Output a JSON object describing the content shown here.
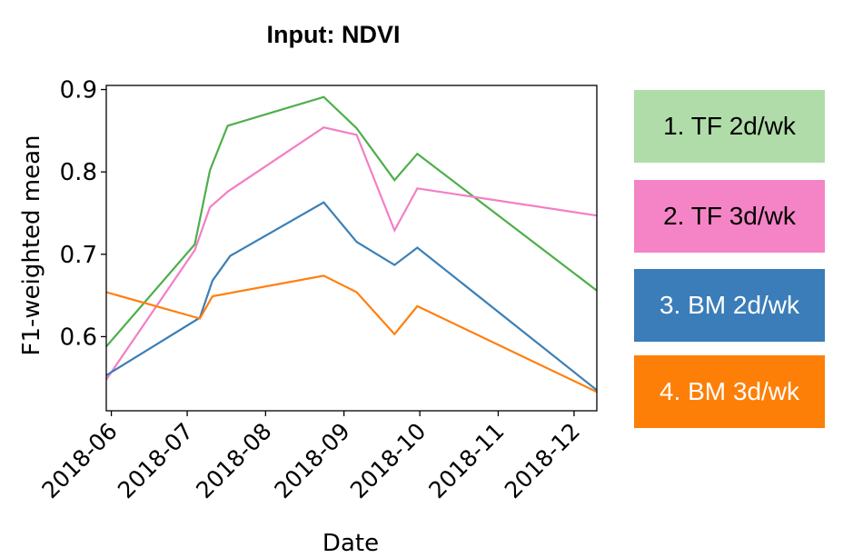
{
  "chart_data": {
    "type": "line",
    "title": "Input: NDVI",
    "xlabel": "Date",
    "ylabel": "F1-weighted mean",
    "xlim": [
      "2018-05-30",
      "2018-12-10"
    ],
    "ylim": [
      0.51,
      0.905
    ],
    "x_tick_labels": [
      "2018-06",
      "2018-07",
      "2018-08",
      "2018-09",
      "2018-10",
      "2018-11",
      "2018-12"
    ],
    "y_tick_labels": [
      "0.6",
      "0.7",
      "0.8",
      "0.9"
    ],
    "y_ticks": [
      0.6,
      0.7,
      0.8,
      0.9
    ],
    "grid": false,
    "legend_position": "right, outside plot",
    "series": [
      {
        "name": "1. TF 2d/wk",
        "color": "#4daf4a",
        "legend_bg": "#b0dca9",
        "legend_text_color": "#000000",
        "x": [
          "2018-05-30",
          "2018-07-04",
          "2018-07-10",
          "2018-07-17",
          "2018-08-24",
          "2018-09-06",
          "2018-09-21",
          "2018-09-30",
          "2018-12-10"
        ],
        "y": [
          0.588,
          0.712,
          0.802,
          0.856,
          0.891,
          0.853,
          0.79,
          0.822,
          0.656
        ]
      },
      {
        "name": "2. TF 3d/wk",
        "color": "#f27fc5",
        "legend_bg": "#f584c6",
        "legend_text_color": "#000000",
        "x": [
          "2018-05-30",
          "2018-07-04",
          "2018-07-10",
          "2018-07-17",
          "2018-08-24",
          "2018-09-06",
          "2018-09-21",
          "2018-09-30",
          "2018-12-10"
        ],
        "y": [
          0.548,
          0.705,
          0.757,
          0.776,
          0.854,
          0.845,
          0.729,
          0.78,
          0.747
        ]
      },
      {
        "name": "3. BM 2d/wk",
        "color": "#3b7fb6",
        "legend_bg": "#3a7db8",
        "legend_text_color": "#ffffff",
        "x": [
          "2018-05-30",
          "2018-07-06",
          "2018-07-11",
          "2018-07-18",
          "2018-08-24",
          "2018-09-06",
          "2018-09-21",
          "2018-09-30",
          "2018-12-10"
        ],
        "y": [
          0.553,
          0.623,
          0.668,
          0.698,
          0.763,
          0.715,
          0.687,
          0.708,
          0.535
        ]
      },
      {
        "name": "4. BM 3d/wk",
        "color": "#ff7f0e",
        "legend_bg": "#fd7f07",
        "legend_text_color": "#ffffff",
        "x": [
          "2018-05-30",
          "2018-07-06",
          "2018-07-11",
          "2018-08-24",
          "2018-09-06",
          "2018-09-21",
          "2018-09-30",
          "2018-12-10"
        ],
        "y": [
          0.654,
          0.622,
          0.649,
          0.674,
          0.654,
          0.603,
          0.637,
          0.533
        ]
      }
    ]
  }
}
